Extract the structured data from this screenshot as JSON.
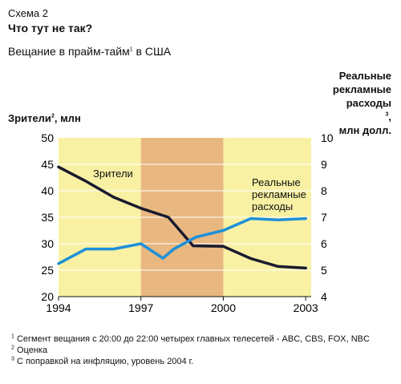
{
  "header": {
    "scheme_label": "Схема 2",
    "heading": "Что тут не так?",
    "subtitle": "Вещание в прайм-тайм",
    "subtitle_note": "1",
    "subtitle_tail": " в США"
  },
  "chart_data": {
    "type": "line",
    "x": [
      1994,
      1995,
      1996,
      1997,
      1998,
      1999,
      2000,
      2001,
      2002,
      2003
    ],
    "x_ticks": [
      "1994",
      "1997",
      "2000",
      "2003"
    ],
    "x_tick_values": [
      1994,
      1997,
      2000,
      2003
    ],
    "xlim": [
      1994,
      2003.2
    ],
    "left_axis": {
      "label": "Зрители",
      "label_note": "2",
      "label_tail": ", млн",
      "ylim": [
        20,
        50
      ],
      "ticks": [
        "20",
        "25",
        "30",
        "35",
        "40",
        "45",
        "50"
      ],
      "tick_values": [
        20,
        25,
        30,
        35,
        40,
        45,
        50
      ]
    },
    "right_axis": {
      "label_lines": [
        "Реальные",
        "рекламные",
        "расходы",
        "млн долл."
      ],
      "label_note": "3",
      "ylim": [
        4,
        10
      ],
      "ticks": [
        "4",
        "5",
        "6",
        "7",
        "8",
        "9",
        "10"
      ],
      "tick_values": [
        4,
        5,
        6,
        7,
        8,
        9,
        10
      ]
    },
    "shaded_region": [
      1997,
      2000
    ],
    "series": [
      {
        "name": "Зрители",
        "axis": "left",
        "color": "#1a1a2e",
        "x": [
          1994,
          1995,
          1996,
          1997,
          1998,
          1998.9,
          2000,
          2001,
          2002,
          2003
        ],
        "values": [
          44.5,
          41.8,
          38.8,
          36.7,
          35.0,
          29.6,
          29.5,
          27.2,
          25.7,
          25.4
        ]
      },
      {
        "name": "Реальные рекламные расходы",
        "name_lines": [
          "Реальные",
          "рекламные",
          "расходы"
        ],
        "axis": "right",
        "color": "#1e90d8",
        "x": [
          1994,
          1995,
          1996,
          1997,
          1997.8,
          1998.2,
          1999,
          2000,
          2001,
          2002,
          2003
        ],
        "values": [
          5.25,
          5.8,
          5.8,
          6.0,
          5.45,
          5.8,
          6.25,
          6.5,
          6.95,
          6.9,
          6.95
        ]
      }
    ],
    "colors": {
      "background": "#f8f1a4",
      "shade": "#e8b880",
      "gridline": "#ffffff"
    }
  },
  "footnotes": [
    {
      "mark": "1",
      "text": "Сегмент вещания с 20:00 до 22:00 четырех главных телесетей - ABC, CBS, FOX, NBC"
    },
    {
      "mark": "2",
      "text": "Оценка"
    },
    {
      "mark": "3",
      "text": "С поправкой на инфляцию, уровень 2004 г."
    }
  ]
}
